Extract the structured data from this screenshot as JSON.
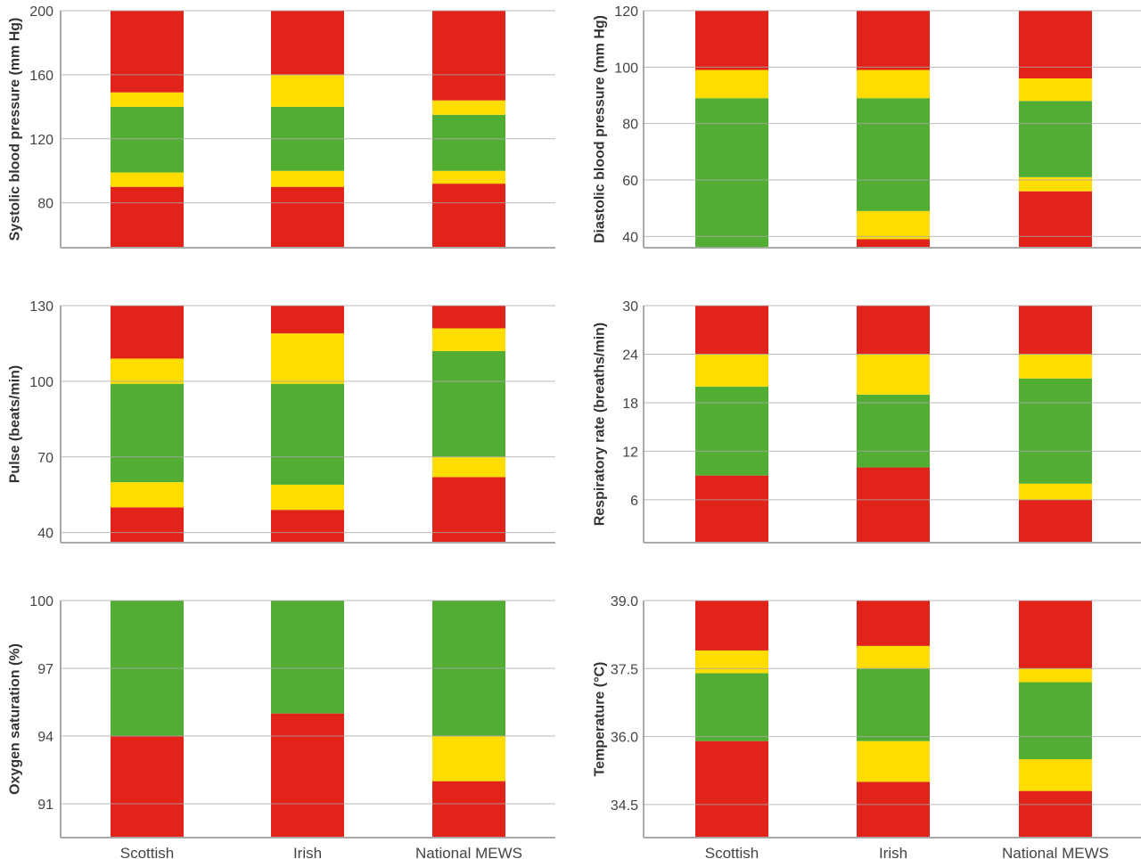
{
  "colors": {
    "red": "#e2231a",
    "yellow": "#ffdd00",
    "green": "#52ae32",
    "grid": "#a9a9a9"
  },
  "chart_data": [
    {
      "type": "bar",
      "stacked": true,
      "ylabel": "Systolic blood pressure (mm Hg)",
      "categories": [
        "Scottish",
        "Irish",
        "National MEWS"
      ],
      "ylim": [
        52,
        200
      ],
      "yticks": [
        80,
        120,
        160,
        200
      ],
      "grid": true,
      "bars": [
        [
          {
            "low": 52,
            "high": 90,
            "zone": "red"
          },
          {
            "low": 90,
            "high": 99,
            "zone": "yellow"
          },
          {
            "low": 99,
            "high": 140,
            "zone": "green"
          },
          {
            "low": 140,
            "high": 149,
            "zone": "yellow"
          },
          {
            "low": 149,
            "high": 200,
            "zone": "red"
          }
        ],
        [
          {
            "low": 52,
            "high": 90,
            "zone": "red"
          },
          {
            "low": 90,
            "high": 100,
            "zone": "yellow"
          },
          {
            "low": 100,
            "high": 140,
            "zone": "green"
          },
          {
            "low": 140,
            "high": 160,
            "zone": "yellow"
          },
          {
            "low": 160,
            "high": 200,
            "zone": "red"
          }
        ],
        [
          {
            "low": 52,
            "high": 92,
            "zone": "red"
          },
          {
            "low": 92,
            "high": 100,
            "zone": "yellow"
          },
          {
            "low": 100,
            "high": 135,
            "zone": "green"
          },
          {
            "low": 135,
            "high": 144,
            "zone": "yellow"
          },
          {
            "low": 144,
            "high": 200,
            "zone": "red"
          }
        ]
      ]
    },
    {
      "type": "bar",
      "stacked": true,
      "ylabel": "Diastolic blood pressure (mm Hg)",
      "categories": [
        "Scottish",
        "Irish",
        "National MEWS"
      ],
      "ylim": [
        36,
        120
      ],
      "yticks": [
        40,
        60,
        80,
        100,
        120
      ],
      "grid": true,
      "bars": [
        [
          {
            "low": 36,
            "high": 89,
            "zone": "green"
          },
          {
            "low": 89,
            "high": 99,
            "zone": "yellow"
          },
          {
            "low": 99,
            "high": 120,
            "zone": "red"
          }
        ],
        [
          {
            "low": 36,
            "high": 39,
            "zone": "red"
          },
          {
            "low": 39,
            "high": 49,
            "zone": "yellow"
          },
          {
            "low": 49,
            "high": 89,
            "zone": "green"
          },
          {
            "low": 89,
            "high": 99,
            "zone": "yellow"
          },
          {
            "low": 99,
            "high": 120,
            "zone": "red"
          }
        ],
        [
          {
            "low": 36,
            "high": 56,
            "zone": "red"
          },
          {
            "low": 56,
            "high": 61,
            "zone": "yellow"
          },
          {
            "low": 61,
            "high": 88,
            "zone": "green"
          },
          {
            "low": 88,
            "high": 96,
            "zone": "yellow"
          },
          {
            "low": 96,
            "high": 120,
            "zone": "red"
          }
        ]
      ]
    },
    {
      "type": "bar",
      "stacked": true,
      "ylabel": "Pulse (beats/min)",
      "categories": [
        "Scottish",
        "Irish",
        "National MEWS"
      ],
      "ylim": [
        36,
        130
      ],
      "yticks": [
        40,
        70,
        100,
        130
      ],
      "grid": true,
      "bars": [
        [
          {
            "low": 36,
            "high": 50,
            "zone": "red"
          },
          {
            "low": 50,
            "high": 60,
            "zone": "yellow"
          },
          {
            "low": 60,
            "high": 99,
            "zone": "green"
          },
          {
            "low": 99,
            "high": 109,
            "zone": "yellow"
          },
          {
            "low": 109,
            "high": 130,
            "zone": "red"
          }
        ],
        [
          {
            "low": 36,
            "high": 49,
            "zone": "red"
          },
          {
            "low": 49,
            "high": 59,
            "zone": "yellow"
          },
          {
            "low": 59,
            "high": 99,
            "zone": "green"
          },
          {
            "low": 99,
            "high": 119,
            "zone": "yellow"
          },
          {
            "low": 119,
            "high": 130,
            "zone": "red"
          }
        ],
        [
          {
            "low": 36,
            "high": 62,
            "zone": "red"
          },
          {
            "low": 62,
            "high": 70,
            "zone": "yellow"
          },
          {
            "low": 70,
            "high": 112,
            "zone": "green"
          },
          {
            "low": 112,
            "high": 121,
            "zone": "yellow"
          },
          {
            "low": 121,
            "high": 130,
            "zone": "red"
          }
        ]
      ]
    },
    {
      "type": "bar",
      "stacked": true,
      "ylabel": "Respiratory rate (breaths/min)",
      "categories": [
        "Scottish",
        "Irish",
        "National MEWS"
      ],
      "ylim": [
        0.7,
        30
      ],
      "yticks": [
        6,
        12,
        18,
        24,
        30
      ],
      "grid": true,
      "bars": [
        [
          {
            "low": 0.7,
            "high": 9,
            "zone": "red"
          },
          {
            "low": 9,
            "high": 20,
            "zone": "green"
          },
          {
            "low": 20,
            "high": 24,
            "zone": "yellow"
          },
          {
            "low": 24,
            "high": 30,
            "zone": "red"
          }
        ],
        [
          {
            "low": 0.7,
            "high": 10,
            "zone": "red"
          },
          {
            "low": 10,
            "high": 19,
            "zone": "green"
          },
          {
            "low": 19,
            "high": 24,
            "zone": "yellow"
          },
          {
            "low": 24,
            "high": 30,
            "zone": "red"
          }
        ],
        [
          {
            "low": 0.7,
            "high": 6,
            "zone": "red"
          },
          {
            "low": 6,
            "high": 8,
            "zone": "yellow"
          },
          {
            "low": 8,
            "high": 21,
            "zone": "green"
          },
          {
            "low": 21,
            "high": 24,
            "zone": "yellow"
          },
          {
            "low": 24,
            "high": 30,
            "zone": "red"
          }
        ]
      ]
    },
    {
      "type": "bar",
      "stacked": true,
      "ylabel": "Oxygen saturation (%)",
      "categories": [
        "Scottish",
        "Irish",
        "National MEWS"
      ],
      "ylim": [
        89.5,
        100
      ],
      "yticks": [
        91,
        94,
        97,
        100
      ],
      "grid": true,
      "bars": [
        [
          {
            "low": 89.5,
            "high": 94,
            "zone": "red"
          },
          {
            "low": 94,
            "high": 100,
            "zone": "green"
          }
        ],
        [
          {
            "low": 89.5,
            "high": 95,
            "zone": "red"
          },
          {
            "low": 95,
            "high": 100,
            "zone": "green"
          }
        ],
        [
          {
            "low": 89.5,
            "high": 92,
            "zone": "red"
          },
          {
            "low": 92,
            "high": 94,
            "zone": "yellow"
          },
          {
            "low": 94,
            "high": 100,
            "zone": "green"
          }
        ]
      ]
    },
    {
      "type": "bar",
      "stacked": true,
      "ylabel": "Temperature (°C)",
      "categories": [
        "Scottish",
        "Irish",
        "National MEWS"
      ],
      "ylim": [
        33.77,
        39.0
      ],
      "yticks": [
        34.5,
        36.0,
        37.5,
        39.0
      ],
      "ytick_labels": [
        "34.5",
        "36.0",
        "37.5",
        "39.0"
      ],
      "grid": true,
      "bars": [
        [
          {
            "low": 33.77,
            "high": 35.9,
            "zone": "red"
          },
          {
            "low": 35.9,
            "high": 37.4,
            "zone": "green"
          },
          {
            "low": 37.4,
            "high": 37.9,
            "zone": "yellow"
          },
          {
            "low": 37.9,
            "high": 39.0,
            "zone": "red"
          }
        ],
        [
          {
            "low": 33.77,
            "high": 35.0,
            "zone": "red"
          },
          {
            "low": 35.0,
            "high": 35.9,
            "zone": "yellow"
          },
          {
            "low": 35.9,
            "high": 37.5,
            "zone": "green"
          },
          {
            "low": 37.5,
            "high": 38.0,
            "zone": "yellow"
          },
          {
            "low": 38.0,
            "high": 39.0,
            "zone": "red"
          }
        ],
        [
          {
            "low": 33.77,
            "high": 34.8,
            "zone": "red"
          },
          {
            "low": 34.8,
            "high": 35.5,
            "zone": "yellow"
          },
          {
            "low": 35.5,
            "high": 37.2,
            "zone": "green"
          },
          {
            "low": 37.2,
            "high": 37.5,
            "zone": "yellow"
          },
          {
            "low": 37.5,
            "high": 39.0,
            "zone": "red"
          }
        ]
      ]
    }
  ]
}
